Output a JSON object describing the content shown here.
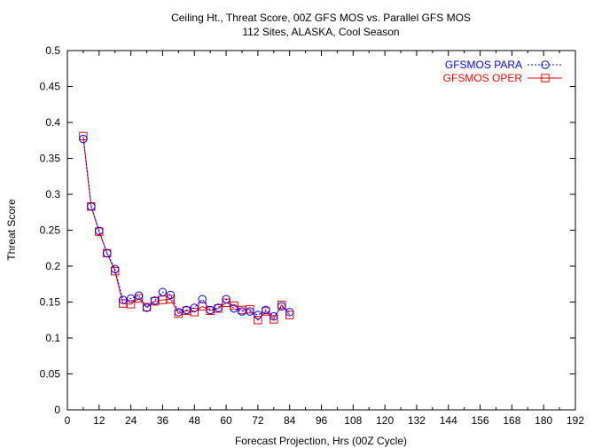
{
  "chart_data": {
    "type": "line",
    "title": "Ceiling Ht., Threat Score, 00Z GFS MOS vs. Parallel GFS MOS",
    "subtitle": "112 Sites, ALASKA, Cool Season",
    "xlabel": "Forecast Projection, Hrs (00Z Cycle)",
    "ylabel": "Threat Score",
    "xlim": [
      0,
      192
    ],
    "ylim": [
      0,
      0.5
    ],
    "xticks": [
      0,
      12,
      24,
      36,
      48,
      60,
      72,
      84,
      96,
      108,
      120,
      132,
      144,
      156,
      168,
      180,
      192
    ],
    "yticks": [
      0,
      0.05,
      0.1,
      0.15,
      0.2,
      0.25,
      0.3,
      0.35,
      0.4,
      0.45,
      0.5
    ],
    "xtick_labels": [
      "0",
      "12",
      "24",
      "36",
      "48",
      "60",
      "72",
      "84",
      "96",
      "108",
      "120",
      "132",
      "144",
      "156",
      "168",
      "180",
      "192"
    ],
    "ytick_labels": [
      "0",
      "0.05",
      "0.1",
      "0.15",
      "0.2",
      "0.25",
      "0.3",
      "0.35",
      "0.4",
      "0.45",
      "0.5"
    ],
    "grid": false,
    "legend_position": "top-right",
    "x": [
      6,
      9,
      12,
      15,
      18,
      21,
      24,
      27,
      30,
      33,
      36,
      39,
      42,
      45,
      48,
      51,
      54,
      57,
      60,
      63,
      66,
      69,
      72,
      75,
      78,
      81,
      84
    ],
    "series": [
      {
        "name": "GFSMOS PARA",
        "color": "#0000ff",
        "line_style": "dotted",
        "marker": "circle",
        "values": [
          0.377,
          0.283,
          0.249,
          0.218,
          0.196,
          0.153,
          0.155,
          0.159,
          0.142,
          0.152,
          0.164,
          0.16,
          0.136,
          0.139,
          0.142,
          0.154,
          0.139,
          0.142,
          0.154,
          0.141,
          0.137,
          0.137,
          0.132,
          0.139,
          0.13,
          0.144,
          0.136
        ]
      },
      {
        "name": "GFSMOS OPER",
        "color": "#ff0000",
        "line_style": "solid",
        "marker": "square",
        "values": [
          0.381,
          0.283,
          0.248,
          0.218,
          0.193,
          0.148,
          0.147,
          0.155,
          0.143,
          0.151,
          0.153,
          0.154,
          0.134,
          0.138,
          0.136,
          0.144,
          0.138,
          0.141,
          0.149,
          0.145,
          0.139,
          0.14,
          0.125,
          0.137,
          0.126,
          0.146,
          0.132
        ]
      }
    ]
  }
}
